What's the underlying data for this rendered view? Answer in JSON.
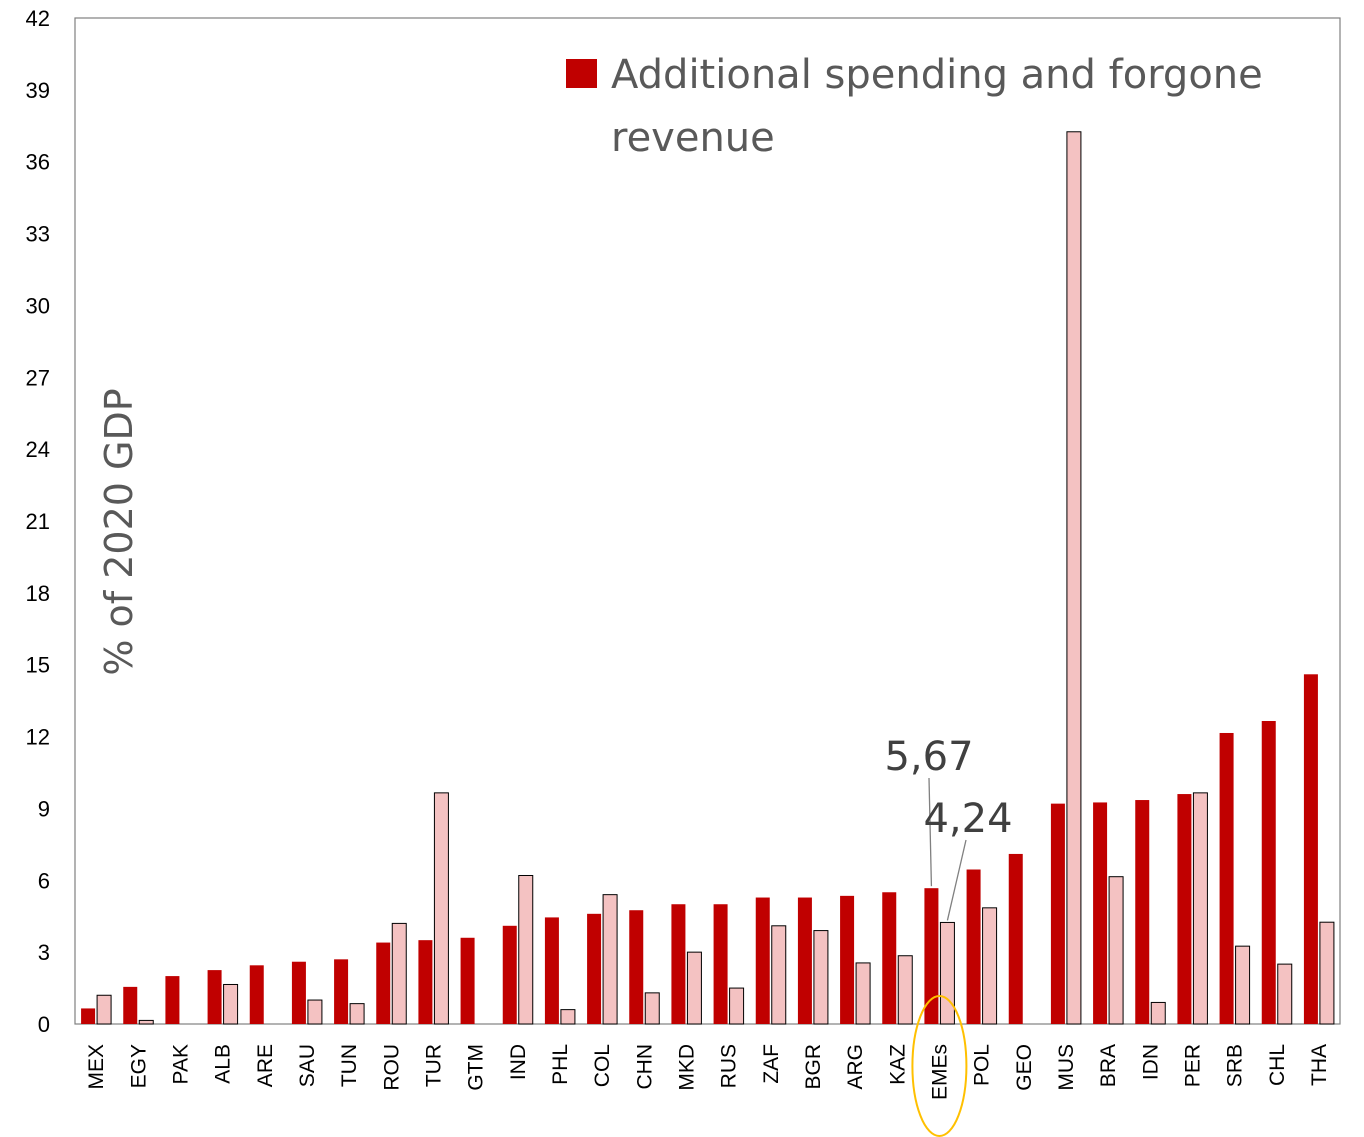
{
  "chart_data": {
    "type": "bar",
    "title": "",
    "xlabel": "",
    "ylabel": "% of 2020 GDP",
    "ylim": [
      0,
      42
    ],
    "yticks": [
      0,
      3,
      6,
      9,
      12,
      15,
      18,
      21,
      24,
      27,
      30,
      33,
      36,
      39,
      42
    ],
    "grid": false,
    "legend_position": "top-right",
    "categories": [
      "MEX",
      "EGY",
      "PAK",
      "ALB",
      "ARE",
      "SAU",
      "TUN",
      "ROU",
      "TUR",
      "GTM",
      "IND",
      "PHL",
      "COL",
      "CHN",
      "MKD",
      "RUS",
      "ZAF",
      "BGR",
      "ARG",
      "KAZ",
      "EMEs",
      "POL",
      "GEO",
      "MUS",
      "BRA",
      "IDN",
      "PER",
      "SRB",
      "CHL",
      "THA"
    ],
    "series": [
      {
        "name": "Additional spending and forgone revenue",
        "color": "#C00000",
        "values": [
          0.65,
          1.55,
          2.0,
          2.25,
          2.45,
          2.6,
          2.7,
          3.4,
          3.5,
          3.6,
          4.1,
          4.45,
          4.6,
          4.75,
          5.0,
          5.0,
          5.28,
          5.28,
          5.35,
          5.5,
          5.67,
          6.45,
          7.1,
          9.2,
          9.25,
          9.35,
          9.6,
          12.15,
          12.65,
          14.6
        ]
      },
      {
        "name": "",
        "color": "#F4C2C2",
        "values": [
          1.2,
          0.15,
          0,
          1.65,
          0,
          1.0,
          0.85,
          4.2,
          9.65,
          0,
          6.2,
          0.6,
          5.4,
          1.3,
          3.0,
          1.5,
          4.1,
          3.9,
          2.55,
          2.85,
          4.24,
          4.85,
          0,
          37.25,
          6.15,
          0.9,
          9.65,
          3.25,
          2.5,
          4.25
        ]
      }
    ],
    "annotations": [
      {
        "text": "5,67",
        "category": "EMEs",
        "series": 0,
        "value": 5.67
      },
      {
        "text": "4,24",
        "category": "EMEs",
        "series": 1,
        "value": 4.24
      }
    ],
    "highlight": {
      "category": "EMEs",
      "color": "#FFC000"
    }
  }
}
